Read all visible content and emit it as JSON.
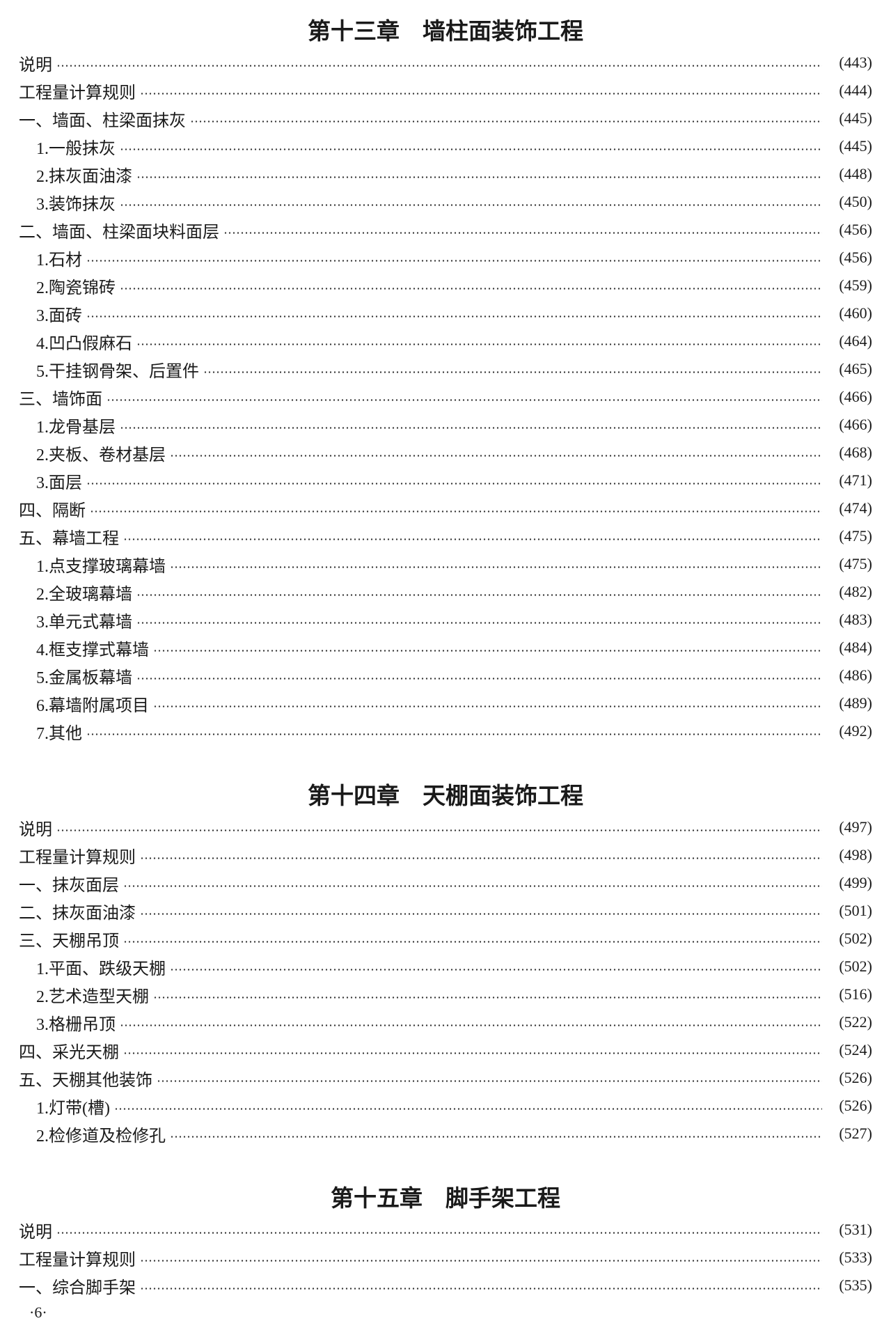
{
  "chapters": [
    {
      "title": "第十三章　墙柱面装饰工程",
      "entries": [
        {
          "label": "说明",
          "page": "(443)",
          "level": 1
        },
        {
          "label": "工程量计算规则",
          "page": "(444)",
          "level": 1
        },
        {
          "label": "一、墙面、柱梁面抹灰",
          "page": "(445)",
          "level": 1
        },
        {
          "label": "1.一般抹灰",
          "page": "(445)",
          "level": 2
        },
        {
          "label": "2.抹灰面油漆",
          "page": "(448)",
          "level": 2
        },
        {
          "label": "3.装饰抹灰",
          "page": "(450)",
          "level": 2
        },
        {
          "label": "二、墙面、柱梁面块料面层",
          "page": "(456)",
          "level": 1
        },
        {
          "label": "1.石材",
          "page": "(456)",
          "level": 2
        },
        {
          "label": "2.陶瓷锦砖",
          "page": "(459)",
          "level": 2
        },
        {
          "label": "3.面砖",
          "page": "(460)",
          "level": 2
        },
        {
          "label": "4.凹凸假麻石",
          "page": "(464)",
          "level": 2
        },
        {
          "label": "5.干挂钢骨架、后置件",
          "page": "(465)",
          "level": 2
        },
        {
          "label": "三、墙饰面",
          "page": "(466)",
          "level": 1
        },
        {
          "label": "1.龙骨基层",
          "page": "(466)",
          "level": 2
        },
        {
          "label": "2.夹板、卷材基层",
          "page": "(468)",
          "level": 2
        },
        {
          "label": "3.面层",
          "page": "(471)",
          "level": 2
        },
        {
          "label": "四、隔断",
          "page": "(474)",
          "level": 1
        },
        {
          "label": "五、幕墙工程",
          "page": "(475)",
          "level": 1
        },
        {
          "label": "1.点支撑玻璃幕墙",
          "page": "(475)",
          "level": 2
        },
        {
          "label": "2.全玻璃幕墙",
          "page": "(482)",
          "level": 2
        },
        {
          "label": "3.单元式幕墙",
          "page": "(483)",
          "level": 2
        },
        {
          "label": "4.框支撑式幕墙",
          "page": "(484)",
          "level": 2
        },
        {
          "label": "5.金属板幕墙",
          "page": "(486)",
          "level": 2
        },
        {
          "label": "6.幕墙附属项目",
          "page": "(489)",
          "level": 2
        },
        {
          "label": "7.其他",
          "page": "(492)",
          "level": 2
        }
      ]
    },
    {
      "title": "第十四章　天棚面装饰工程",
      "entries": [
        {
          "label": "说明",
          "page": "(497)",
          "level": 1
        },
        {
          "label": "工程量计算规则",
          "page": "(498)",
          "level": 1
        },
        {
          "label": "一、抹灰面层",
          "page": "(499)",
          "level": 1
        },
        {
          "label": "二、抹灰面油漆",
          "page": "(501)",
          "level": 1
        },
        {
          "label": "三、天棚吊顶",
          "page": "(502)",
          "level": 1
        },
        {
          "label": "1.平面、跌级天棚",
          "page": "(502)",
          "level": 2
        },
        {
          "label": "2.艺术造型天棚",
          "page": "(516)",
          "level": 2
        },
        {
          "label": "3.格栅吊顶",
          "page": "(522)",
          "level": 2
        },
        {
          "label": "四、采光天棚",
          "page": "(524)",
          "level": 1
        },
        {
          "label": "五、天棚其他装饰",
          "page": "(526)",
          "level": 1
        },
        {
          "label": "1.灯带(槽)",
          "page": "(526)",
          "level": 2
        },
        {
          "label": "2.检修道及检修孔",
          "page": "(527)",
          "level": 2
        }
      ]
    },
    {
      "title": "第十五章　脚手架工程",
      "entries": [
        {
          "label": "说明",
          "page": "(531)",
          "level": 1
        },
        {
          "label": "工程量计算规则",
          "page": "(533)",
          "level": 1
        },
        {
          "label": "一、综合脚手架",
          "page": "(535)",
          "level": 1
        }
      ]
    }
  ],
  "page_number": "·6·"
}
